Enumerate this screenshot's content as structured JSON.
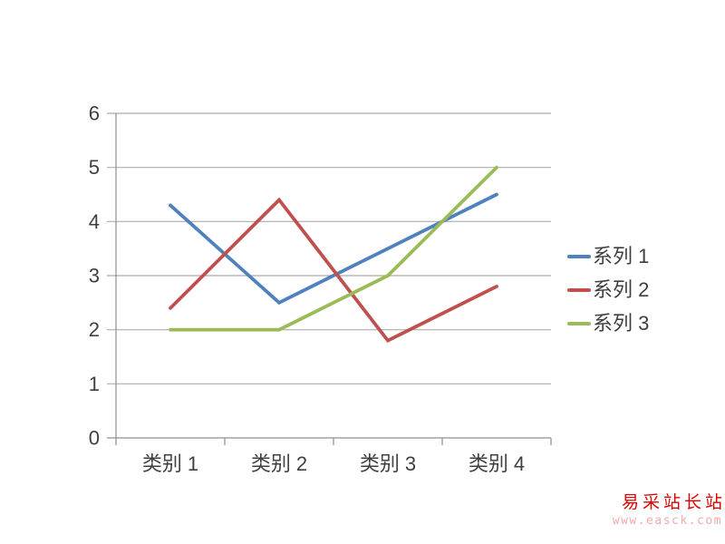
{
  "chart_data": {
    "type": "line",
    "title": "",
    "xlabel": "",
    "ylabel": "",
    "categories": [
      "类别 1",
      "类别 2",
      "类别 3",
      "类别 4"
    ],
    "series": [
      {
        "name": "系列 1",
        "color": "#4F81BD",
        "values": [
          4.3,
          2.5,
          3.5,
          4.5
        ]
      },
      {
        "name": "系列 2",
        "color": "#C0504D",
        "values": [
          2.4,
          4.4,
          1.8,
          2.8
        ]
      },
      {
        "name": "系列 3",
        "color": "#9BBB59",
        "values": [
          2.0,
          2.0,
          3.0,
          5.0
        ]
      }
    ],
    "ylim": [
      0,
      6
    ],
    "yticks": [
      0,
      1,
      2,
      3,
      4,
      5,
      6
    ],
    "grid": true,
    "legend_position": "right"
  },
  "colors": {
    "gridline": "#ABABAB",
    "axis": "#8F8F8F",
    "tick_text": "#3f3f3f",
    "background": "#FFFFFF"
  },
  "watermark": {
    "title": "易采站长站",
    "url_text": "www.easck.com",
    "title_color": "#DD0000",
    "url_color": "#F0AAAA"
  }
}
